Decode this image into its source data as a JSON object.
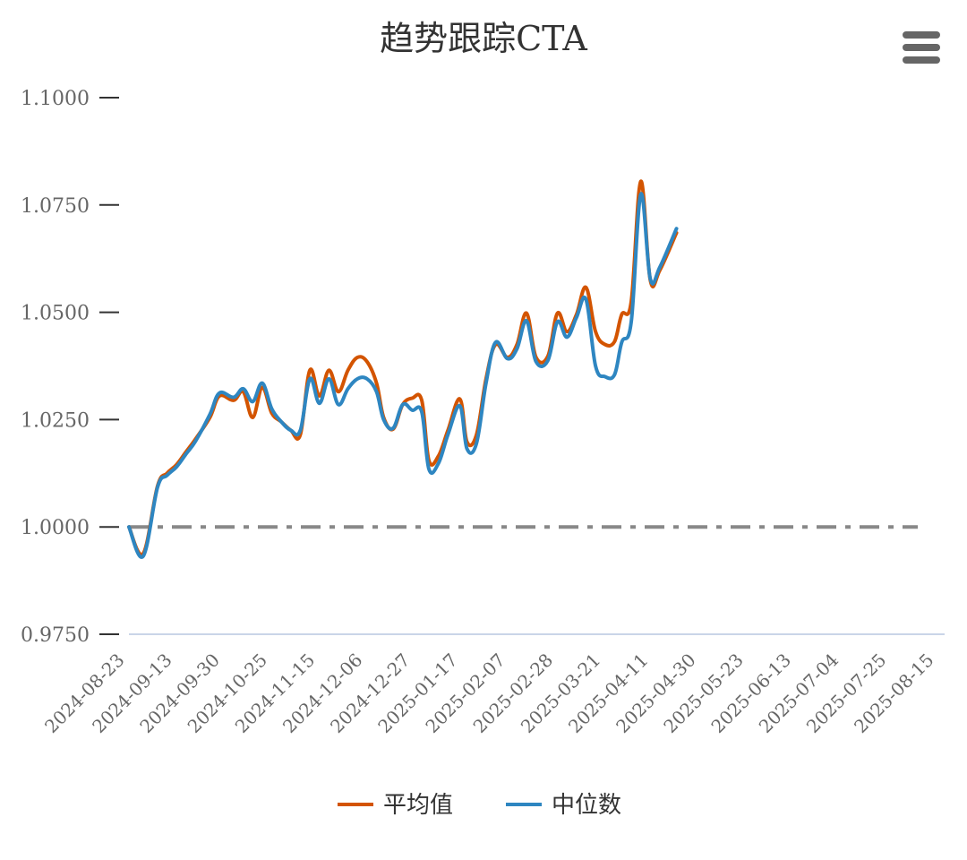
{
  "chart_data": {
    "type": "line",
    "title": "趋势跟踪CTA",
    "xlabel": "",
    "ylabel": "",
    "ylim": [
      0.975,
      1.1
    ],
    "yticks": [
      "1.1000",
      "1.0750",
      "1.0500",
      "1.0250",
      "1.0000",
      "0.9750"
    ],
    "ytick_values": [
      1.1,
      1.075,
      1.05,
      1.025,
      1.0,
      0.975
    ],
    "x_tick_labels": [
      "2024-08-23",
      "2024-09-13",
      "2024-09-30",
      "2024-10-25",
      "2024-11-15",
      "2024-12-06",
      "2024-12-27",
      "2025-01-17",
      "2025-02-07",
      "2025-02-28",
      "2025-03-21",
      "2025-04-11",
      "2025-04-30",
      "2025-05-23",
      "2025-06-13",
      "2025-07-04",
      "2025-07-25",
      "2025-08-15"
    ],
    "reference_line": 1.0,
    "legend_position": "bottom",
    "series": [
      {
        "name": "平均值",
        "color": "#d35400",
        "points": [
          [
            0,
            1.0
          ],
          [
            0.3,
            0.9938
          ],
          [
            0.6,
            1.0095
          ],
          [
            0.8,
            1.0125
          ],
          [
            1.0,
            1.0145
          ],
          [
            1.2,
            1.0175
          ],
          [
            1.4,
            1.0205
          ],
          [
            1.7,
            1.0255
          ],
          [
            1.9,
            1.0305
          ],
          [
            2.2,
            1.0295
          ],
          [
            2.4,
            1.0315
          ],
          [
            2.6,
            1.0255
          ],
          [
            2.8,
            1.0325
          ],
          [
            3.0,
            1.0265
          ],
          [
            3.2,
            1.0245
          ],
          [
            3.4,
            1.0225
          ],
          [
            3.6,
            1.0215
          ],
          [
            3.8,
            1.0365
          ],
          [
            4.0,
            1.0305
          ],
          [
            4.2,
            1.0365
          ],
          [
            4.4,
            1.0315
          ],
          [
            4.6,
            1.0365
          ],
          [
            4.8,
            1.0395
          ],
          [
            5.0,
            1.0385
          ],
          [
            5.2,
            1.0335
          ],
          [
            5.35,
            1.0255
          ],
          [
            5.55,
            1.0228
          ],
          [
            5.75,
            1.0285
          ],
          [
            5.95,
            1.03
          ],
          [
            6.15,
            1.0295
          ],
          [
            6.3,
            1.0155
          ],
          [
            6.5,
            1.0165
          ],
          [
            6.7,
            1.0225
          ],
          [
            6.95,
            1.0298
          ],
          [
            7.1,
            1.0198
          ],
          [
            7.3,
            1.0215
          ],
          [
            7.5,
            1.0345
          ],
          [
            7.7,
            1.0425
          ],
          [
            7.95,
            1.0395
          ],
          [
            8.15,
            1.0425
          ],
          [
            8.35,
            1.0498
          ],
          [
            8.55,
            1.0395
          ],
          [
            8.8,
            1.0398
          ],
          [
            9.0,
            1.0498
          ],
          [
            9.2,
            1.0455
          ],
          [
            9.4,
            1.0495
          ],
          [
            9.6,
            1.0558
          ],
          [
            9.8,
            1.0455
          ],
          [
            10.0,
            1.0425
          ],
          [
            10.2,
            1.0432
          ],
          [
            10.35,
            1.0495
          ],
          [
            10.55,
            1.0525
          ],
          [
            10.75,
            1.0805
          ],
          [
            10.95,
            1.0575
          ],
          [
            11.15,
            1.0598
          ],
          [
            11.5,
            1.0685
          ]
        ]
      },
      {
        "name": "中位数",
        "color": "#2e86c1",
        "points": [
          [
            0,
            1.0
          ],
          [
            0.3,
            0.9932
          ],
          [
            0.6,
            1.0092
          ],
          [
            0.8,
            1.012
          ],
          [
            1.0,
            1.014
          ],
          [
            1.2,
            1.017
          ],
          [
            1.4,
            1.02
          ],
          [
            1.7,
            1.0262
          ],
          [
            1.9,
            1.0312
          ],
          [
            2.2,
            1.0302
          ],
          [
            2.4,
            1.0322
          ],
          [
            2.6,
            1.0292
          ],
          [
            2.8,
            1.0335
          ],
          [
            3.0,
            1.0275
          ],
          [
            3.2,
            1.0245
          ],
          [
            3.4,
            1.0225
          ],
          [
            3.6,
            1.0225
          ],
          [
            3.8,
            1.0345
          ],
          [
            4.0,
            1.0288
          ],
          [
            4.2,
            1.0345
          ],
          [
            4.4,
            1.0285
          ],
          [
            4.6,
            1.0322
          ],
          [
            4.8,
            1.0345
          ],
          [
            5.0,
            1.0345
          ],
          [
            5.2,
            1.0315
          ],
          [
            5.35,
            1.025
          ],
          [
            5.55,
            1.023
          ],
          [
            5.75,
            1.0285
          ],
          [
            5.95,
            1.0272
          ],
          [
            6.15,
            1.0268
          ],
          [
            6.3,
            1.0135
          ],
          [
            6.5,
            1.0148
          ],
          [
            6.7,
            1.0215
          ],
          [
            6.95,
            1.0282
          ],
          [
            7.1,
            1.0182
          ],
          [
            7.3,
            1.0195
          ],
          [
            7.5,
            1.0335
          ],
          [
            7.7,
            1.043
          ],
          [
            7.95,
            1.0392
          ],
          [
            8.15,
            1.0415
          ],
          [
            8.35,
            1.048
          ],
          [
            8.55,
            1.0385
          ],
          [
            8.8,
            1.0388
          ],
          [
            9.0,
            1.0478
          ],
          [
            9.2,
            1.0442
          ],
          [
            9.4,
            1.0488
          ],
          [
            9.6,
            1.053
          ],
          [
            9.8,
            1.0375
          ],
          [
            10.0,
            1.035
          ],
          [
            10.2,
            1.0355
          ],
          [
            10.35,
            1.043
          ],
          [
            10.55,
            1.0478
          ],
          [
            10.75,
            1.0775
          ],
          [
            10.95,
            1.0578
          ],
          [
            11.15,
            1.0605
          ],
          [
            11.5,
            1.0695
          ]
        ]
      }
    ]
  },
  "menu_icon": "hamburger-menu-icon"
}
